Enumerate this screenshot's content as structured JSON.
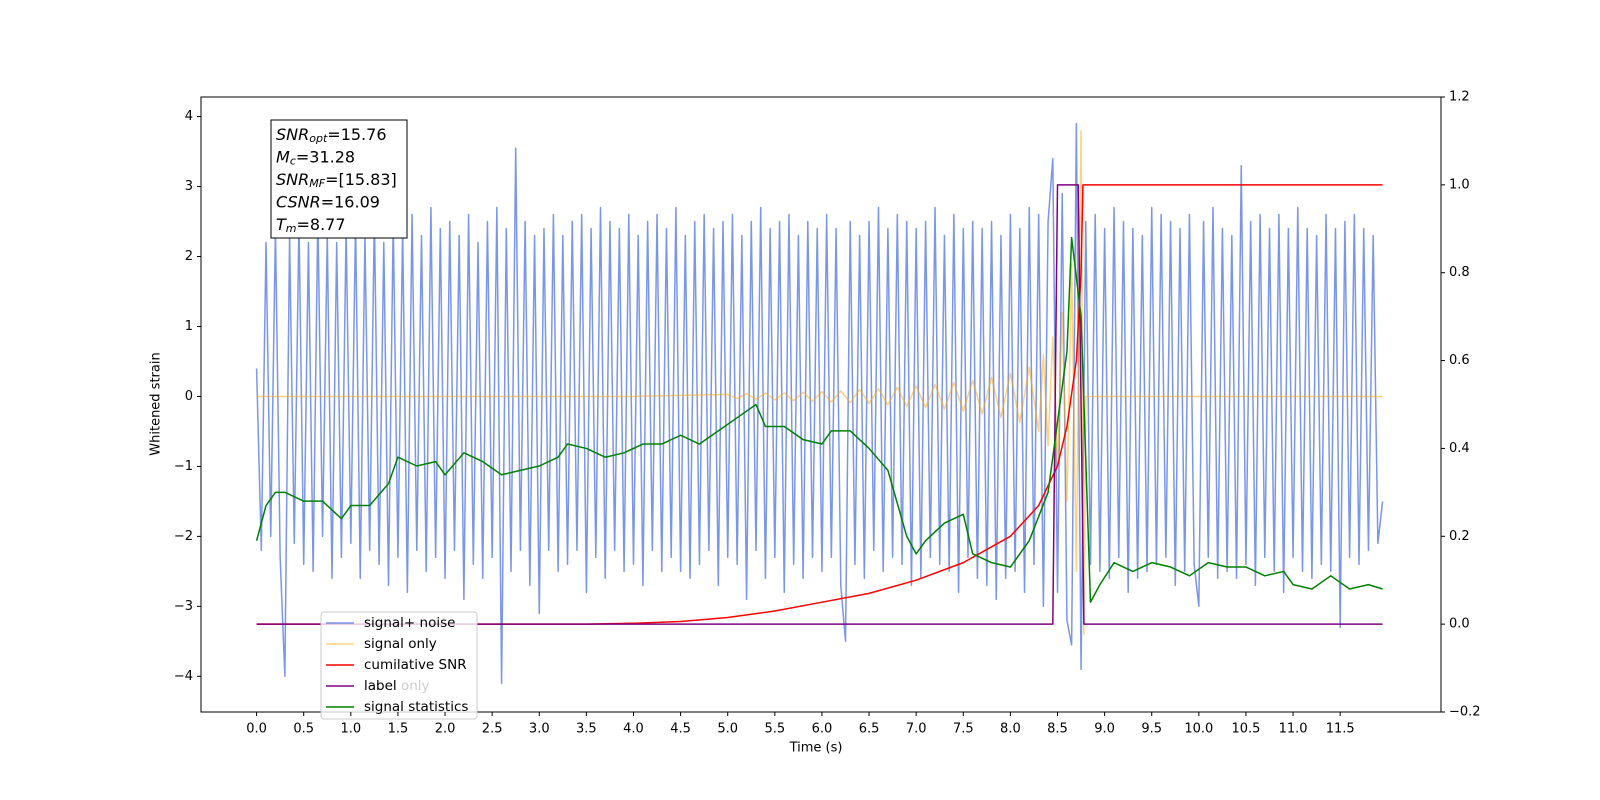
{
  "chart_data": {
    "type": "line",
    "xlabel": "Time (s)",
    "ylabel": "Whitened strain",
    "xlim": [
      -0.59,
      12.57
    ],
    "ylim": [
      -4.51,
      4.28
    ],
    "y2lim": [
      -0.2,
      1.2
    ],
    "xticks": [
      {
        "value": 0,
        "label": "0.0"
      },
      0.5,
      {
        "value": 1,
        "label": "1.0"
      },
      1.5,
      {
        "value": 2,
        "label": "2.0"
      },
      2.5,
      {
        "value": 3,
        "label": "3.0"
      },
      3.5,
      {
        "value": 4,
        "label": "4.0"
      },
      4.5,
      {
        "value": 5,
        "label": "5.0"
      },
      5.5,
      {
        "value": 6,
        "label": "6.0"
      },
      6.5,
      {
        "value": 7,
        "label": "7.0"
      },
      7.5,
      {
        "value": 8,
        "label": "8.0"
      },
      8.5,
      {
        "value": 9,
        "label": "9.0"
      },
      9.5,
      {
        "value": 10,
        "label": "10.0"
      },
      10.5,
      {
        "value": 11,
        "label": "11.0"
      },
      11.5
    ],
    "yticks": [
      {
        "value": -4,
        "label": "−4"
      },
      {
        "value": -3,
        "label": "−3"
      },
      {
        "value": -2,
        "label": "−2"
      },
      {
        "value": -1,
        "label": "−1"
      },
      0,
      1,
      2,
      3,
      4
    ],
    "y2ticks": [
      {
        "value": -0.2,
        "label": "−0.2"
      },
      {
        "value": 0,
        "label": "0.0"
      },
      0.2,
      0.4,
      0.6,
      0.8,
      {
        "value": 1,
        "label": "1.0"
      },
      1.2
    ],
    "stats_box": [
      {
        "name": "SNR",
        "sub": "opt",
        "value": "=15.76"
      },
      {
        "name": "M",
        "sub": "c",
        "value": "=31.28"
      },
      {
        "name": "SNR",
        "sub": "MF",
        "value": "=[15.83]"
      },
      {
        "name": "CSNR",
        "value": "=16.09"
      },
      {
        "name": "T",
        "sub": "m",
        "value": "=8.77"
      }
    ],
    "legend_occluded_text": "label only",
    "series": [
      {
        "name": "signal+ noise",
        "color": "#4169e1",
        "alpha": 0.7,
        "x": [
          0,
          0.05,
          0.1,
          0.15,
          0.2,
          0.25,
          0.3,
          0.35,
          0.4,
          0.45,
          0.5,
          0.55,
          0.6,
          0.65,
          0.7,
          0.75,
          0.8,
          0.85,
          0.9,
          0.95,
          1,
          1.05,
          1.1,
          1.15,
          1.2,
          1.25,
          1.3,
          1.35,
          1.4,
          1.45,
          1.5,
          1.55,
          1.6,
          1.65,
          1.7,
          1.75,
          1.8,
          1.85,
          1.9,
          1.95,
          2,
          2.05,
          2.1,
          2.15,
          2.2,
          2.25,
          2.3,
          2.35,
          2.4,
          2.45,
          2.5,
          2.55,
          2.6,
          2.65,
          2.7,
          2.75,
          2.8,
          2.85,
          2.9,
          2.95,
          3,
          3.05,
          3.1,
          3.15,
          3.2,
          3.25,
          3.3,
          3.35,
          3.4,
          3.45,
          3.5,
          3.55,
          3.6,
          3.65,
          3.7,
          3.75,
          3.8,
          3.85,
          3.9,
          3.95,
          4,
          4.05,
          4.1,
          4.15,
          4.2,
          4.25,
          4.3,
          4.35,
          4.4,
          4.45,
          4.5,
          4.55,
          4.6,
          4.65,
          4.7,
          4.75,
          4.8,
          4.85,
          4.9,
          4.95,
          5,
          5.05,
          5.1,
          5.15,
          5.2,
          5.25,
          5.3,
          5.35,
          5.4,
          5.45,
          5.5,
          5.55,
          5.6,
          5.65,
          5.7,
          5.75,
          5.8,
          5.85,
          5.9,
          5.95,
          6,
          6.05,
          6.1,
          6.15,
          6.2,
          6.25,
          6.3,
          6.35,
          6.4,
          6.45,
          6.5,
          6.55,
          6.6,
          6.65,
          6.7,
          6.75,
          6.8,
          6.85,
          6.9,
          6.95,
          7,
          7.05,
          7.1,
          7.15,
          7.2,
          7.25,
          7.3,
          7.35,
          7.4,
          7.45,
          7.5,
          7.55,
          7.6,
          7.65,
          7.7,
          7.75,
          7.8,
          7.85,
          7.9,
          7.95,
          8,
          8.05,
          8.1,
          8.15,
          8.2,
          8.25,
          8.3,
          8.35,
          8.4,
          8.45,
          8.5,
          8.55,
          8.6,
          8.65,
          8.7,
          8.75,
          8.8,
          8.85,
          8.9,
          8.95,
          9,
          9.05,
          9.1,
          9.15,
          9.2,
          9.25,
          9.3,
          9.35,
          9.4,
          9.45,
          9.5,
          9.55,
          9.6,
          9.65,
          9.7,
          9.75,
          9.8,
          9.85,
          9.9,
          9.95,
          10,
          10.05,
          10.1,
          10.15,
          10.2,
          10.25,
          10.3,
          10.35,
          10.4,
          10.45,
          10.5,
          10.55,
          10.6,
          10.65,
          10.7,
          10.75,
          10.8,
          10.85,
          10.9,
          10.95,
          11,
          11.05,
          11.1,
          11.15,
          11.2,
          11.25,
          11.3,
          11.35,
          11.4,
          11.45,
          11.5,
          11.55,
          11.6,
          11.65,
          11.7,
          11.75,
          11.8,
          11.85,
          11.9,
          11.95
        ],
        "values": [
          0.4,
          -2.2,
          2.2,
          -2.0,
          2.4,
          -2.3,
          -4.0,
          2.3,
          -2.1,
          2.5,
          -2.4,
          2.2,
          -2.5,
          2.6,
          -2.0,
          2.3,
          -2.6,
          2.2,
          -2.3,
          2.4,
          -2.1,
          2.5,
          -2.6,
          2.3,
          -2.2,
          2.6,
          -2.4,
          2.2,
          -2.7,
          2.5,
          -2.3,
          2.4,
          -2.8,
          2.6,
          -2.2,
          2.3,
          -2.5,
          2.7,
          -2.3,
          2.4,
          -2.6,
          2.5,
          -2.2,
          2.3,
          -2.9,
          2.6,
          -2.4,
          2.2,
          -2.6,
          2.5,
          -2.3,
          2.7,
          -4.1,
          2.4,
          -2.5,
          3.55,
          -2.2,
          2.5,
          -2.7,
          2.3,
          -3.1,
          2.4,
          -2.2,
          2.6,
          -2.5,
          2.3,
          -2.4,
          2.5,
          -2.2,
          2.6,
          -2.8,
          2.4,
          -2.3,
          2.7,
          -2.6,
          2.5,
          -2.2,
          2.4,
          -2.5,
          2.6,
          -2.4,
          2.3,
          -2.7,
          2.5,
          -2.2,
          2.6,
          -2.5,
          2.4,
          -2.3,
          2.7,
          -2.5,
          2.3,
          -2.6,
          2.5,
          -2.4,
          2.6,
          -2.2,
          2.4,
          -2.7,
          2.5,
          -2.3,
          2.6,
          -2.4,
          2.3,
          -2.9,
          2.5,
          -2.2,
          2.7,
          -2.6,
          2.4,
          -2.3,
          2.5,
          -2.8,
          2.6,
          -2.4,
          2.3,
          -2.6,
          2.5,
          -2.3,
          2.4,
          -2.5,
          2.6,
          -2.3,
          2.4,
          -2.7,
          -3.5,
          2.5,
          -2.4,
          2.3,
          -2.6,
          2.5,
          -2.2,
          2.7,
          -2.5,
          2.4,
          -2.3,
          2.6,
          -2.4,
          2.5,
          -2.7,
          2.4,
          -2.6,
          2.5,
          -2.3,
          2.7,
          -2.4,
          2.3,
          -2.5,
          2.6,
          -2.8,
          2.4,
          -2.3,
          2.5,
          -2.6,
          2.4,
          -2.7,
          2.5,
          -2.9,
          2.3,
          -2.6,
          2.6,
          -2.5,
          2.4,
          -2.8,
          2.7,
          -2.4,
          2.6,
          -3.0,
          2.5,
          3.4,
          -2.8,
          2.9,
          -3.2,
          -3.55,
          3.9,
          -3.9,
          2.5,
          -2.4,
          2.6,
          -2.5,
          2.4,
          -2.6,
          2.7,
          -2.3,
          2.5,
          -2.8,
          2.4,
          -2.6,
          2.3,
          -2.5,
          2.7,
          -2.4,
          2.6,
          -2.3,
          2.5,
          -2.7,
          2.4,
          -2.5,
          2.6,
          -2.4,
          -3.0,
          2.5,
          -2.3,
          2.7,
          -2.6,
          2.4,
          -2.5,
          2.3,
          -2.6,
          3.3,
          -2.4,
          2.5,
          -2.7,
          2.6,
          -2.3,
          2.4,
          -2.5,
          2.6,
          -2.8,
          2.4,
          -2.3,
          2.7,
          -2.5,
          2.4,
          -2.6,
          2.3,
          -2.4,
          2.6,
          -2.5,
          2.4,
          -3.3,
          2.5,
          -2.3,
          2.6,
          -2.4,
          2.4,
          -2.2,
          2.3,
          -2.1,
          -1.5
        ]
      },
      {
        "name": "signal only",
        "color": "#ffa500",
        "alpha": 0.5,
        "x": [
          0,
          4.0,
          5.0,
          5.1,
          5.2,
          5.3,
          5.4,
          5.5,
          5.6,
          5.7,
          5.8,
          5.9,
          6.0,
          6.1,
          6.2,
          6.3,
          6.4,
          6.5,
          6.6,
          6.7,
          6.8,
          6.9,
          7.0,
          7.1,
          7.2,
          7.3,
          7.4,
          7.5,
          7.6,
          7.7,
          7.8,
          7.9,
          8.0,
          8.1,
          8.2,
          8.3,
          8.35,
          8.4,
          8.45,
          8.5,
          8.55,
          8.6,
          8.65,
          8.7,
          8.75,
          8.78,
          8.8,
          11.95
        ],
        "values": [
          0,
          0,
          0.03,
          -0.03,
          0.04,
          -0.04,
          0.05,
          -0.05,
          0.05,
          -0.06,
          0.06,
          -0.07,
          0.07,
          -0.08,
          0.08,
          -0.09,
          0.1,
          -0.1,
          0.11,
          -0.12,
          0.13,
          -0.14,
          0.15,
          -0.16,
          0.17,
          -0.18,
          0.2,
          -0.21,
          0.23,
          -0.25,
          0.27,
          -0.3,
          0.33,
          -0.37,
          0.42,
          -0.5,
          0.6,
          -0.7,
          0.85,
          -1.0,
          1.2,
          -1.5,
          1.9,
          -2.5,
          3.8,
          -3.4,
          0,
          0
        ]
      },
      {
        "name": "cumilative SNR",
        "color": "#ff0000",
        "axis": "y2",
        "x": [
          0,
          3.5,
          4.0,
          4.5,
          5.0,
          5.5,
          6.0,
          6.5,
          7.0,
          7.5,
          8.0,
          8.3,
          8.5,
          8.6,
          8.7,
          8.75,
          8.77,
          11.95
        ],
        "values": [
          0,
          0,
          0.002,
          0.006,
          0.015,
          0.03,
          0.05,
          0.07,
          0.1,
          0.14,
          0.2,
          0.27,
          0.36,
          0.45,
          0.6,
          0.8,
          1.0,
          1.0
        ]
      },
      {
        "name": "label",
        "color": "#800080",
        "axis": "y2",
        "x": [
          0,
          8.45,
          8.5,
          8.72,
          8.78,
          11.95
        ],
        "values": [
          0,
          0,
          1,
          1,
          0,
          0
        ]
      },
      {
        "name": "signal statistics",
        "color": "#008000",
        "axis": "y2",
        "x": [
          0,
          0.1,
          0.2,
          0.3,
          0.5,
          0.7,
          0.9,
          1.0,
          1.2,
          1.4,
          1.5,
          1.7,
          1.9,
          2.0,
          2.2,
          2.4,
          2.6,
          2.8,
          3.0,
          3.2,
          3.3,
          3.5,
          3.7,
          3.9,
          4.1,
          4.3,
          4.5,
          4.7,
          4.9,
          5.1,
          5.3,
          5.4,
          5.6,
          5.8,
          6.0,
          6.1,
          6.3,
          6.5,
          6.7,
          6.9,
          7.0,
          7.1,
          7.3,
          7.5,
          7.6,
          7.8,
          8.0,
          8.2,
          8.4,
          8.6,
          8.65,
          8.75,
          8.85,
          8.95,
          9.1,
          9.3,
          9.5,
          9.7,
          9.9,
          10.1,
          10.3,
          10.5,
          10.7,
          10.9,
          11.0,
          11.2,
          11.4,
          11.6,
          11.8,
          11.95
        ],
        "values": [
          0.19,
          0.27,
          0.3,
          0.3,
          0.28,
          0.28,
          0.24,
          0.27,
          0.27,
          0.32,
          0.38,
          0.36,
          0.37,
          0.34,
          0.39,
          0.37,
          0.34,
          0.35,
          0.36,
          0.38,
          0.41,
          0.4,
          0.38,
          0.39,
          0.41,
          0.41,
          0.43,
          0.41,
          0.44,
          0.47,
          0.5,
          0.45,
          0.45,
          0.42,
          0.41,
          0.44,
          0.44,
          0.4,
          0.35,
          0.2,
          0.16,
          0.19,
          0.23,
          0.25,
          0.16,
          0.14,
          0.13,
          0.19,
          0.3,
          0.62,
          0.88,
          0.7,
          0.05,
          0.09,
          0.14,
          0.12,
          0.14,
          0.13,
          0.11,
          0.14,
          0.13,
          0.13,
          0.11,
          0.12,
          0.09,
          0.08,
          0.11,
          0.08,
          0.09,
          0.08
        ]
      }
    ]
  }
}
